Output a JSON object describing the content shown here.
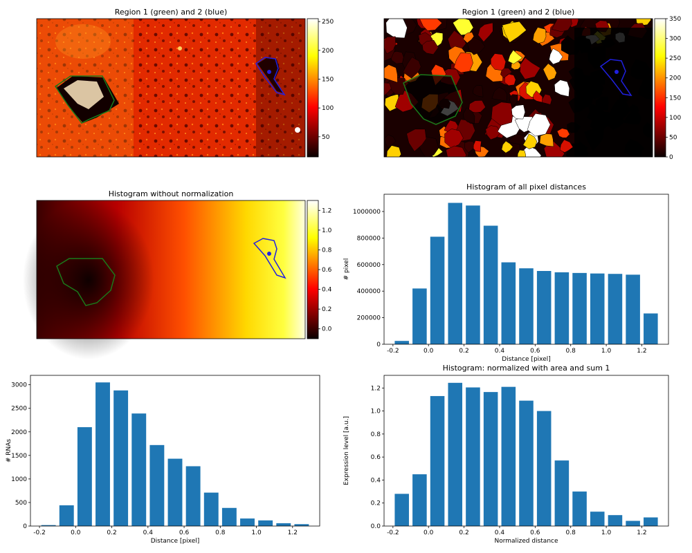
{
  "image_panels": [
    {
      "title": "Region 1 (green) and 2 (blue)",
      "colorbar_ticks": [
        "50",
        "100",
        "150",
        "200",
        "250"
      ],
      "colorbar_range": [
        15,
        255
      ]
    },
    {
      "title": "Region 1 (green) and 2 (blue)",
      "colorbar_ticks": [
        "0",
        "50",
        "100",
        "150",
        "200",
        "250",
        "300",
        "350"
      ],
      "colorbar_range": [
        0,
        350
      ]
    },
    {
      "title": "Histogram without normalization",
      "colorbar_ticks": [
        "0.0",
        "0.2",
        "0.4",
        "0.6",
        "0.8",
        "1.0",
        "1.2"
      ],
      "colorbar_range": [
        -0.1,
        1.3
      ]
    }
  ],
  "chart_data": [
    {
      "type": "bar",
      "title": "Histogram of all pixel distances",
      "xlabel": "Distance [pixel]",
      "ylabel": "# pixel",
      "x": [
        -0.15,
        -0.05,
        0.05,
        0.15,
        0.25,
        0.35,
        0.45,
        0.55,
        0.65,
        0.75,
        0.85,
        0.95,
        1.05,
        1.15,
        1.25
      ],
      "values": [
        25000,
        420000,
        810000,
        1065000,
        1045000,
        893000,
        617000,
        572000,
        552000,
        542000,
        537000,
        533000,
        530000,
        524000,
        232000
      ],
      "xlim": [
        -0.25,
        1.35
      ],
      "ylim": [
        0,
        1130000
      ],
      "xticks": [
        -0.2,
        0.0,
        0.2,
        0.4,
        0.6,
        0.8,
        1.0,
        1.2
      ],
      "xtick_labels": [
        "-0.2",
        "0.0",
        "0.2",
        "0.4",
        "0.6",
        "0.8",
        "1.0",
        "1.2"
      ],
      "yticks": [
        0,
        200000,
        400000,
        600000,
        800000,
        1000000
      ],
      "ytick_labels": [
        "0",
        "200000",
        "400000",
        "600000",
        "800000",
        "1000000"
      ],
      "color": "#1f77b4"
    },
    {
      "type": "bar",
      "title": "",
      "xlabel": "Distance [pixel]",
      "ylabel": "# RNAs",
      "x": [
        -0.15,
        -0.05,
        0.05,
        0.15,
        0.25,
        0.35,
        0.45,
        0.55,
        0.65,
        0.75,
        0.85,
        0.95,
        1.05,
        1.15,
        1.25
      ],
      "values": [
        20,
        440,
        2100,
        3050,
        2880,
        2390,
        1720,
        1430,
        1270,
        710,
        385,
        160,
        120,
        60,
        40
      ],
      "xlim": [
        -0.25,
        1.35
      ],
      "ylim": [
        0,
        3200
      ],
      "xticks": [
        -0.2,
        0.0,
        0.2,
        0.4,
        0.6,
        0.8,
        1.0,
        1.2
      ],
      "xtick_labels": [
        "-0.2",
        "0.0",
        "0.2",
        "0.4",
        "0.6",
        "0.8",
        "1.0",
        "1.2"
      ],
      "yticks": [
        0,
        500,
        1000,
        1500,
        2000,
        2500,
        3000
      ],
      "ytick_labels": [
        "0",
        "500",
        "1000",
        "1500",
        "2000",
        "2500",
        "3000"
      ],
      "color": "#1f77b4"
    },
    {
      "type": "bar",
      "title": "Histogram: normalized with area and sum 1",
      "xlabel": "Normalized distance",
      "ylabel": "Expression level [a.u.]",
      "x": [
        -0.15,
        -0.05,
        0.05,
        0.15,
        0.25,
        0.35,
        0.45,
        0.55,
        0.65,
        0.75,
        0.85,
        0.95,
        1.05,
        1.15,
        1.25
      ],
      "values": [
        0.28,
        0.45,
        1.13,
        1.245,
        1.205,
        1.165,
        1.21,
        1.09,
        1.0,
        0.57,
        0.3,
        0.125,
        0.095,
        0.045,
        0.075
      ],
      "xlim": [
        -0.25,
        1.35
      ],
      "ylim": [
        0,
        1.31
      ],
      "xticks": [
        -0.2,
        0.0,
        0.2,
        0.4,
        0.6,
        0.8,
        1.0,
        1.2
      ],
      "xtick_labels": [
        "-0.2",
        "0.0",
        "0.2",
        "0.4",
        "0.6",
        "0.8",
        "1.0",
        "1.2"
      ],
      "yticks": [
        0.0,
        0.2,
        0.4,
        0.6,
        0.8,
        1.0,
        1.2
      ],
      "ytick_labels": [
        "0.0",
        "0.2",
        "0.4",
        "0.6",
        "0.8",
        "1.0",
        "1.2"
      ],
      "color": "#1f77b4"
    }
  ]
}
